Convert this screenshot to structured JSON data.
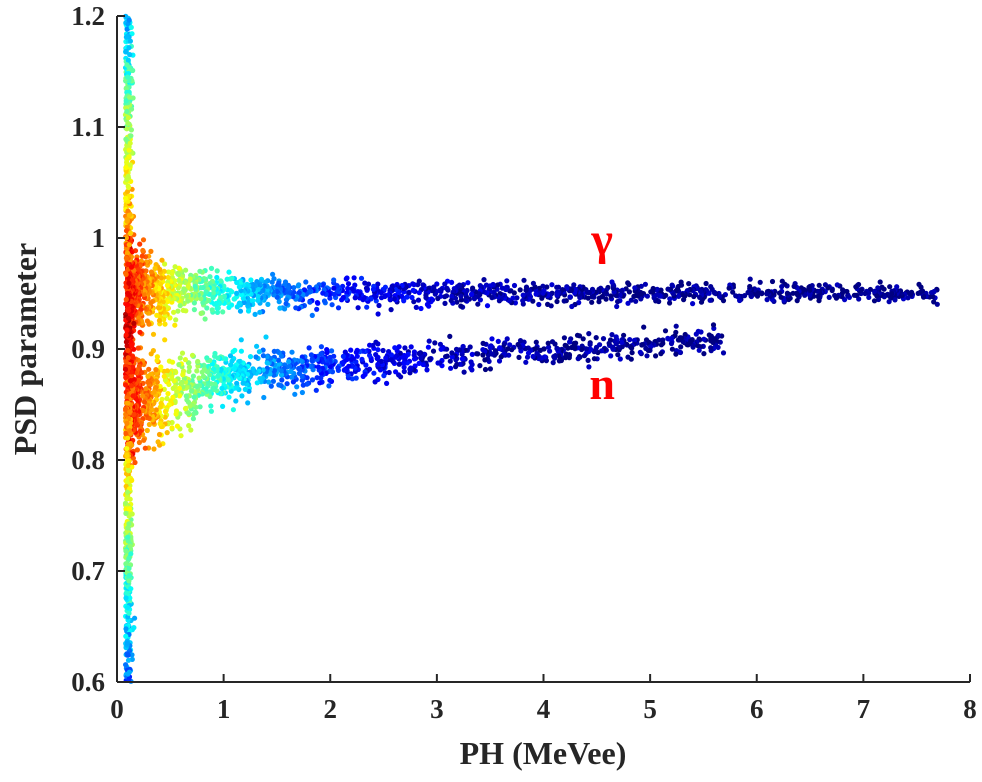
{
  "chart_data": {
    "type": "scatter",
    "title": "",
    "xlabel": "PH (MeVee)",
    "ylabel": "PSD parameter",
    "xlim": [
      0,
      8
    ],
    "ylim": [
      0.6,
      1.2
    ],
    "x_ticks": [
      0,
      1,
      2,
      3,
      4,
      5,
      6,
      7,
      8
    ],
    "x_tick_labels": [
      "0",
      "1",
      "2",
      "3",
      "4",
      "5",
      "6",
      "7",
      "8"
    ],
    "y_ticks": [
      0.6,
      0.7,
      0.8,
      0.9,
      1.0,
      1.1,
      1.2
    ],
    "y_tick_labels": [
      "0.6",
      "0.7",
      "0.8",
      "0.9",
      "1",
      "1.1",
      "1.2"
    ],
    "colormap": "jet (density)",
    "series": [
      {
        "name": "γ",
        "description": "gamma band",
        "centerline": [
          [
            0.1,
            0.955
          ],
          [
            0.5,
            0.952
          ],
          [
            1,
            0.951
          ],
          [
            2,
            0.95
          ],
          [
            3,
            0.95
          ],
          [
            4,
            0.95
          ],
          [
            5,
            0.951
          ],
          [
            6,
            0.951
          ],
          [
            7,
            0.951
          ],
          [
            7.7,
            0.95
          ]
        ],
        "x_range": [
          0.1,
          7.7
        ],
        "color": "#d00000"
      },
      {
        "name": "n",
        "description": "neutron band",
        "centerline": [
          [
            0.1,
            0.85
          ],
          [
            0.5,
            0.86
          ],
          [
            1,
            0.875
          ],
          [
            2,
            0.885
          ],
          [
            3,
            0.893
          ],
          [
            4,
            0.899
          ],
          [
            5,
            0.905
          ],
          [
            5.7,
            0.909
          ]
        ],
        "x_range": [
          0.1,
          5.7
        ],
        "color": "#d00000"
      }
    ],
    "annotations": [
      {
        "text": "γ",
        "x": 4.55,
        "y": 0.985,
        "color": "#ff0000"
      },
      {
        "text": "n",
        "x": 4.55,
        "y": 0.855,
        "color": "#ff0000"
      }
    ]
  }
}
